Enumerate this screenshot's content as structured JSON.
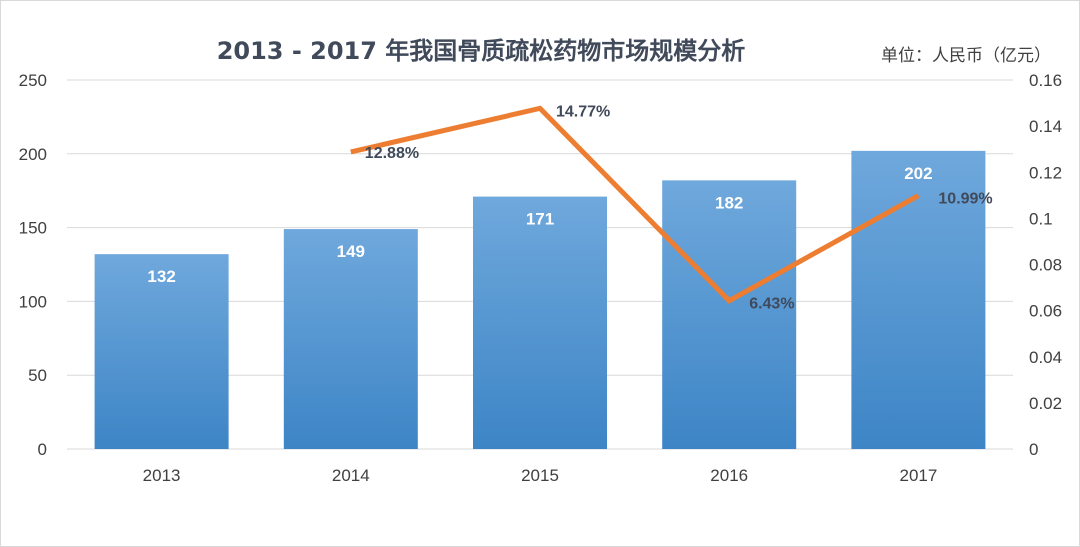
{
  "chart_data": {
    "type": "bar",
    "title": "2013 - 2017 年我国骨质疏松药物市场规模分析",
    "unit_label": "单位：人民币（亿元）",
    "categories": [
      "2013",
      "2014",
      "2015",
      "2016",
      "2017"
    ],
    "left_axis": {
      "ylim": [
        0,
        250
      ],
      "ticks": [
        "0",
        "50",
        "100",
        "150",
        "200",
        "250"
      ]
    },
    "right_axis": {
      "ylim": [
        0,
        0.16
      ],
      "ticks": [
        "0",
        "0.02",
        "0.04",
        "0.06",
        "0.08",
        "0.1",
        "0.12",
        "0.14",
        "0.16"
      ]
    },
    "bar_series": {
      "type": "bar",
      "values": [
        132,
        149,
        171,
        182,
        202
      ],
      "data_labels": [
        "132",
        "149",
        "171",
        "182",
        "202"
      ],
      "color_top": "#6fa8dc",
      "color_bottom": "#3d85c6"
    },
    "line_series": {
      "type": "line",
      "axis": "right",
      "values": [
        null,
        0.1288,
        0.1477,
        0.0643,
        0.1099
      ],
      "data_labels": [
        "",
        "12.88%",
        "14.77%",
        "6.43%",
        "10.99%"
      ],
      "color": "#ed7d31"
    },
    "grid": true,
    "legend": "none"
  }
}
